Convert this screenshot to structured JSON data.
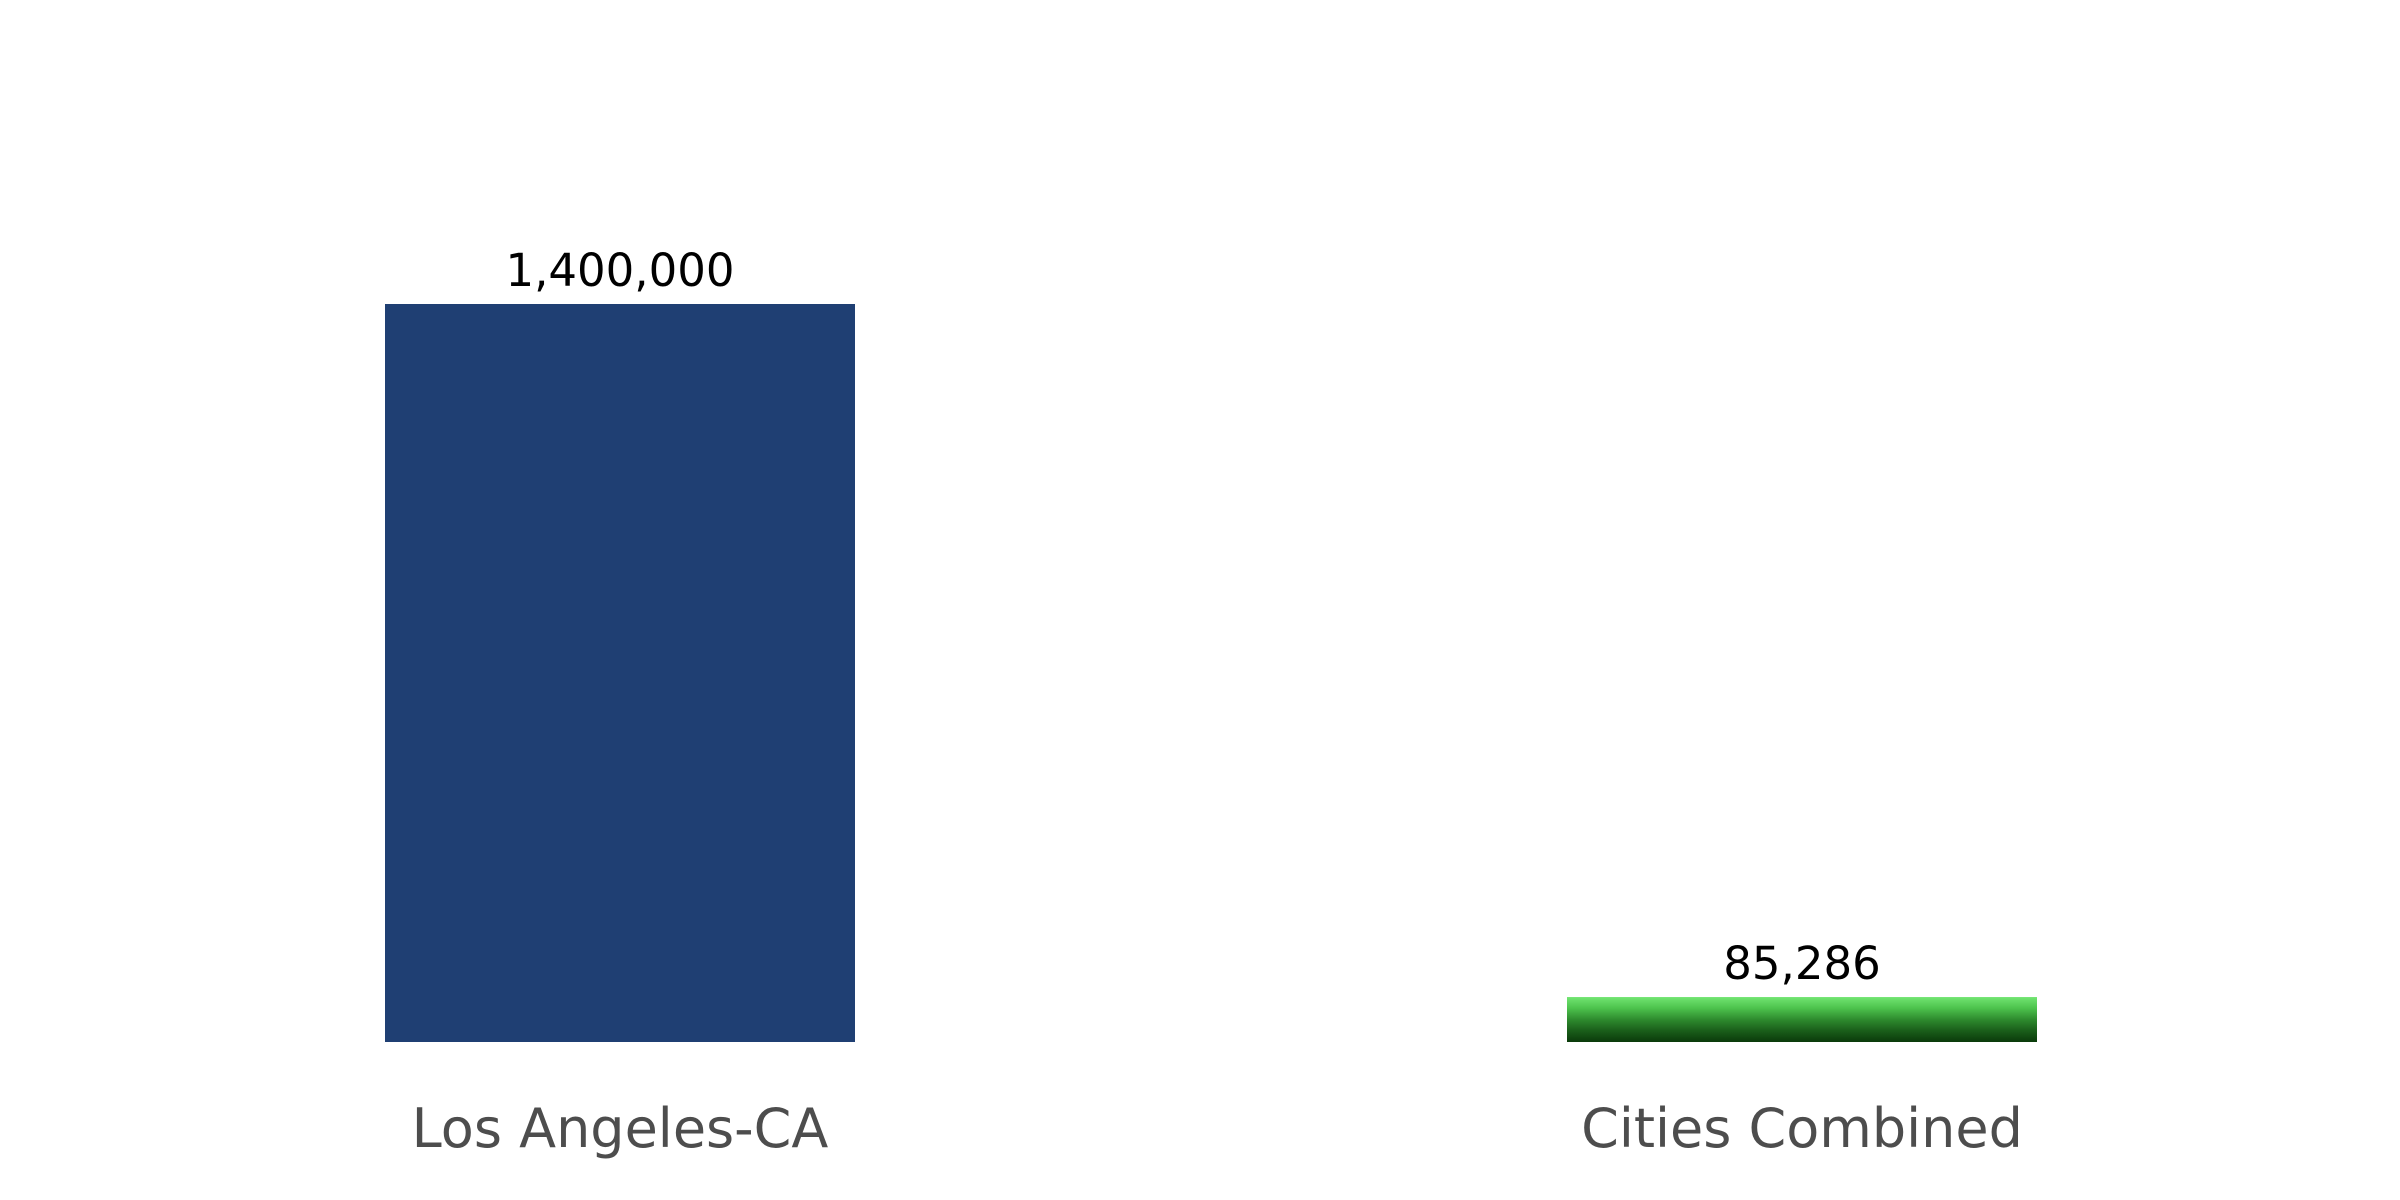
{
  "chart_data": {
    "type": "bar",
    "title": "",
    "xlabel": "",
    "ylabel": "",
    "categories": [
      "Los Angeles-CA",
      "Cities Combined"
    ],
    "values": [
      1400000,
      85286
    ],
    "value_labels": [
      "1,400,000",
      "85,286"
    ],
    "ylim": [
      0,
      1400000
    ],
    "grid": false,
    "legend": "none",
    "bar_styles": [
      {
        "fill": "#1f3f73"
      },
      {
        "gradient": [
          "#0a3a0a",
          "#1a5e1a",
          "#2e8b2e",
          "#4cc24c",
          "#72e572"
        ]
      }
    ]
  }
}
